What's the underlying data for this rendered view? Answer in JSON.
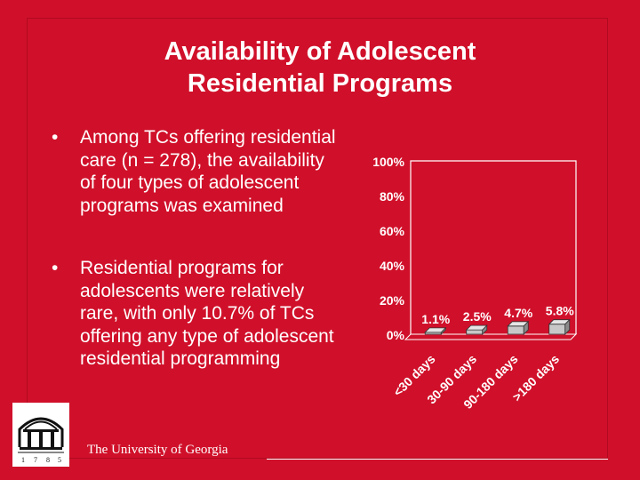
{
  "slide": {
    "title_line1": "Availability of Adolescent",
    "title_line2": "Residential Programs",
    "bullet_symbol": "•",
    "bullets": [
      "Among TCs offering residential care (n = 278), the availability of four types of adolescent programs was examined",
      "Residential programs for adolescents were relatively rare, with only 10.7% of TCs offering any type of adolescent residential programming"
    ]
  },
  "footer": {
    "university": "The University of Georgia",
    "logo_year_digits": [
      "1",
      "7",
      "8",
      "5"
    ]
  },
  "colors": {
    "background": "#d0102a",
    "text": "#ffffff",
    "bar_fill": "#c8c8c8"
  },
  "chart_data": {
    "type": "bar",
    "title": "",
    "xlabel": "",
    "ylabel": "",
    "categories": [
      "<30 days",
      "30-90 days",
      "90-180 days",
      ">180 days"
    ],
    "values": [
      1.1,
      2.5,
      4.7,
      5.8
    ],
    "data_labels": [
      "1.1%",
      "2.5%",
      "4.7%",
      "5.8%"
    ],
    "ylim": [
      0,
      100
    ],
    "yticks": [
      0,
      20,
      40,
      60,
      80,
      100
    ],
    "ytick_labels": [
      "0%",
      "20%",
      "40%",
      "60%",
      "80%",
      "100%"
    ],
    "style": "3d",
    "grid": false
  }
}
